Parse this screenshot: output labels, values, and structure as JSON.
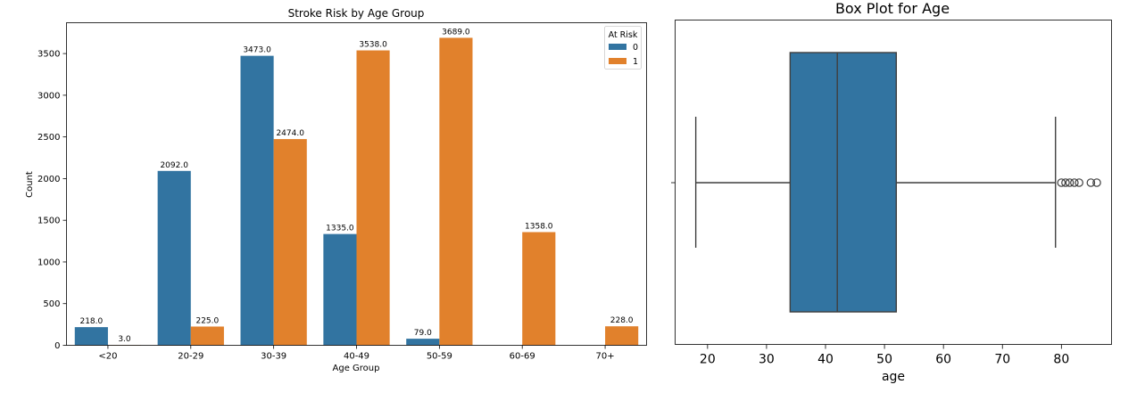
{
  "chart_data": [
    {
      "type": "bar",
      "title": "Stroke Risk by Age Group",
      "xlabel": "Age Group",
      "ylabel": "Count",
      "categories": [
        "<20",
        "20-29",
        "30-39",
        "40-49",
        "50-59",
        "60-69",
        "70+"
      ],
      "ylim": [
        0,
        3870
      ],
      "yticks": [
        0,
        500,
        1000,
        1500,
        2000,
        2500,
        3000,
        3500
      ],
      "legend": {
        "title": "At Risk",
        "placement": "top-right"
      },
      "series": [
        {
          "name": "0",
          "color": "#3274a1",
          "values": [
            218.0,
            2092.0,
            3473.0,
            1335.0,
            79.0,
            null,
            null
          ],
          "labels": [
            "218.0",
            "2092.0",
            "3473.0",
            "1335.0",
            "79.0",
            null,
            null
          ]
        },
        {
          "name": "1",
          "color": "#e1812c",
          "values": [
            3.0,
            225.0,
            2474.0,
            3538.0,
            3689.0,
            1358.0,
            228.0
          ],
          "labels": [
            "3.0",
            "225.0",
            "2474.0",
            "3538.0",
            "3689.0",
            "1358.0",
            "228.0"
          ]
        }
      ]
    },
    {
      "type": "box",
      "title": "Box Plot for Age",
      "xlabel": "age",
      "xlim": [
        14.5,
        88.5
      ],
      "xticks": [
        20,
        30,
        40,
        50,
        60,
        70,
        80
      ],
      "color": "#3274a1",
      "stats": {
        "whisker_low": 18,
        "q1": 34,
        "median": 42,
        "q3": 52,
        "whisker_high": 79
      },
      "outliers": [
        80,
        80.7,
        81.4,
        82.2,
        83,
        85,
        86
      ]
    }
  ]
}
